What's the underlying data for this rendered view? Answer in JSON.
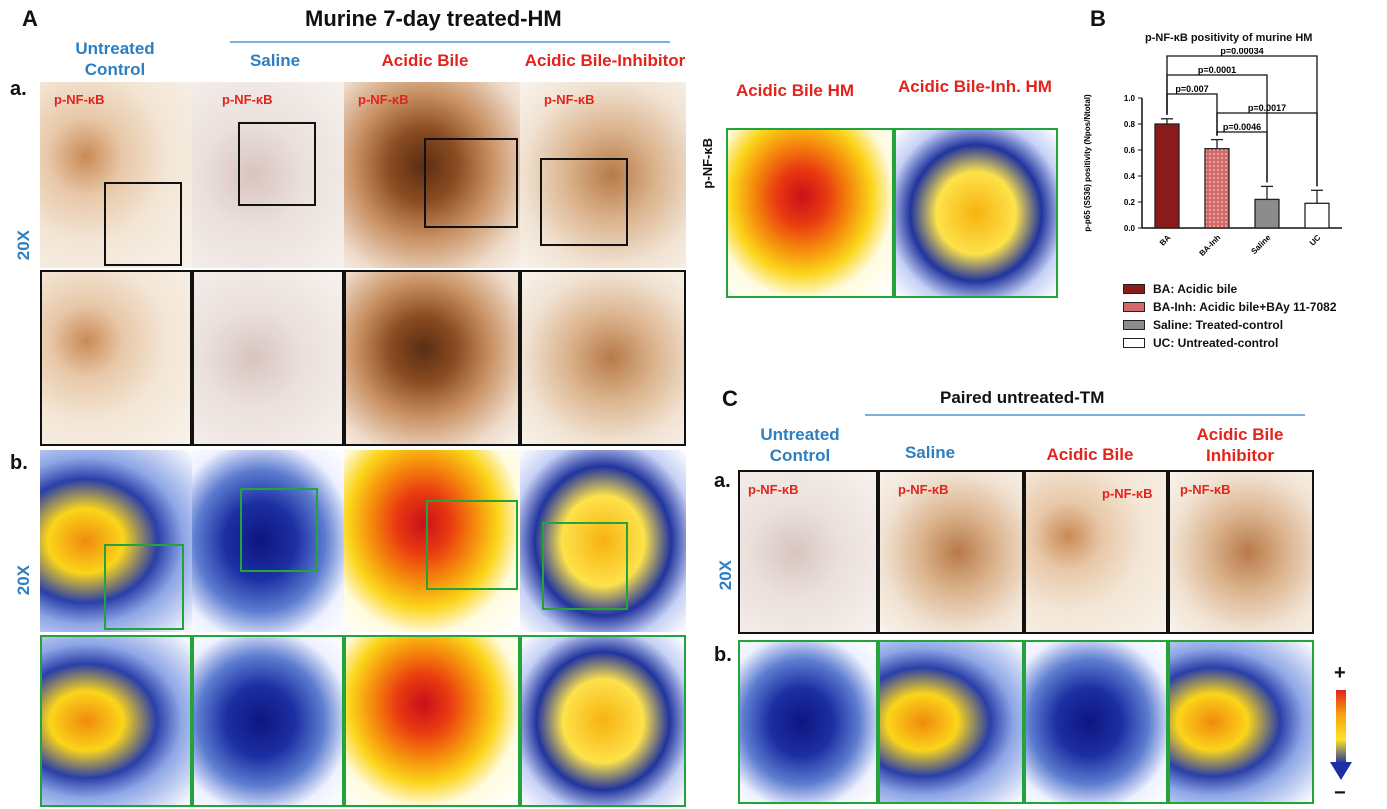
{
  "panelA": {
    "letter": "A",
    "title": "Murine 7-day treated-HM",
    "columns": [
      {
        "label": "Untreated Control",
        "color": "#2d7fc1"
      },
      {
        "label": "Saline",
        "color": "#2d7fc1"
      },
      {
        "label": "Acidic Bile",
        "color": "#e3241c"
      },
      {
        "label": "Acidic Bile-Inhibitor",
        "color": "#e3241c"
      }
    ],
    "row_a": "a.",
    "row_b": "b.",
    "magnification": "20X",
    "marker": "p-NF-κB",
    "inset_marker": "p-NF-κB",
    "heat_titles": [
      "Acidic Bile HM",
      "Acidic Bile-Inh. HM"
    ]
  },
  "panelB": {
    "letter": "B",
    "legend": [
      {
        "label": "BA: Acidic bile",
        "color": "#8b1a1a"
      },
      {
        "label": "BA-Inh: Acidic bile+BAy 11-7082",
        "color": "#d36a6a"
      },
      {
        "label": "Saline: Treated-control",
        "color": "#8c8c8c"
      },
      {
        "label": "UC: Untreated-control",
        "color": "#ffffff"
      }
    ]
  },
  "chart_data": {
    "type": "bar",
    "title": "p-NF-κB positivity of murine HM",
    "ylabel": "p-p65 (S536) positivity (Npos/Ntotal)",
    "categories": [
      "BA",
      "BA-Inh",
      "Saline",
      "UC"
    ],
    "values": [
      0.8,
      0.61,
      0.22,
      0.19
    ],
    "errors": [
      0.04,
      0.07,
      0.1,
      0.1
    ],
    "colors": [
      "#8b1a1a",
      "#d36a6a",
      "#8c8c8c",
      "#ffffff"
    ],
    "ylim": [
      0,
      1.0
    ],
    "yticks": [
      "0.0",
      "0.2",
      "0.4",
      "0.6",
      "0.8",
      "1.0"
    ],
    "significance": [
      {
        "from": 0,
        "to": 3,
        "label": "p=0.00034"
      },
      {
        "from": 0,
        "to": 2,
        "label": "p=0.0001"
      },
      {
        "from": 0,
        "to": 1,
        "label": "p=0.007"
      },
      {
        "from": 1,
        "to": 3,
        "label": "p=0.0017"
      },
      {
        "from": 1,
        "to": 2,
        "label": "p=0.0046"
      }
    ]
  },
  "panelC": {
    "letter": "C",
    "title": "Paired untreated-TM",
    "columns": [
      {
        "label": "Untreated Control",
        "color": "#2d7fc1"
      },
      {
        "label": "Saline",
        "color": "#2d7fc1"
      },
      {
        "label": "Acidic Bile",
        "color": "#e3241c"
      },
      {
        "label": "Acidic Bile Inhibitor",
        "color": "#e3241c"
      }
    ],
    "row_a": "a.",
    "row_b": "b.",
    "magnification": "20X",
    "marker": "p-NF-κB",
    "scale_plus": "+",
    "scale_minus": "−"
  }
}
